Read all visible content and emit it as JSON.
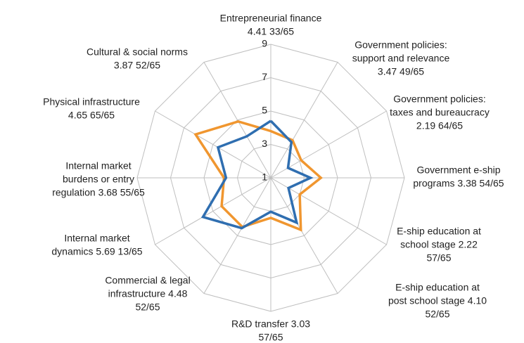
{
  "chart_data": {
    "type": "radar",
    "categories": [
      [
        "Entrepreneurial finance",
        "4.41 33/65"
      ],
      [
        "Government policies:",
        "support and relevance",
        "3.47 49/65"
      ],
      [
        "Government policies:",
        "taxes and bureaucracy",
        "2.19 64/65"
      ],
      [
        "Government e-ship",
        "programs 3.38 54/65"
      ],
      [
        "E-ship education at",
        "school stage 2.22",
        "57/65"
      ],
      [
        "E-ship education at",
        "post school stage 4.10",
        "52/65"
      ],
      [
        "R&D transfer 3.03",
        "57/65"
      ],
      [
        "Commercial & legal",
        "infrastructure 4.48",
        "52/65"
      ],
      [
        "Internal market",
        "dynamics 5.69 13/65"
      ],
      [
        "Internal market",
        "burdens or entry",
        "regulation 3.68 55/65"
      ],
      [
        "Physical infrastructure",
        "4.65 65/65"
      ],
      [
        "Cultural & social norms",
        "3.87 52/65"
      ]
    ],
    "series": [
      {
        "color": "#f0962f",
        "values": [
          3.8,
          3.6,
          3.1,
          4.0,
          3.0,
          4.6,
          3.4,
          4.4,
          4.4,
          3.8,
          6.2,
          4.9
        ]
      },
      {
        "color": "#2f6eb0",
        "values": [
          4.41,
          3.47,
          2.19,
          3.38,
          2.22,
          4.1,
          3.03,
          4.48,
          5.69,
          3.68,
          4.65,
          3.87
        ]
      }
    ],
    "ylim": [
      1,
      9
    ],
    "yticks": [
      1,
      3,
      5,
      7,
      9
    ],
    "grid": true
  }
}
